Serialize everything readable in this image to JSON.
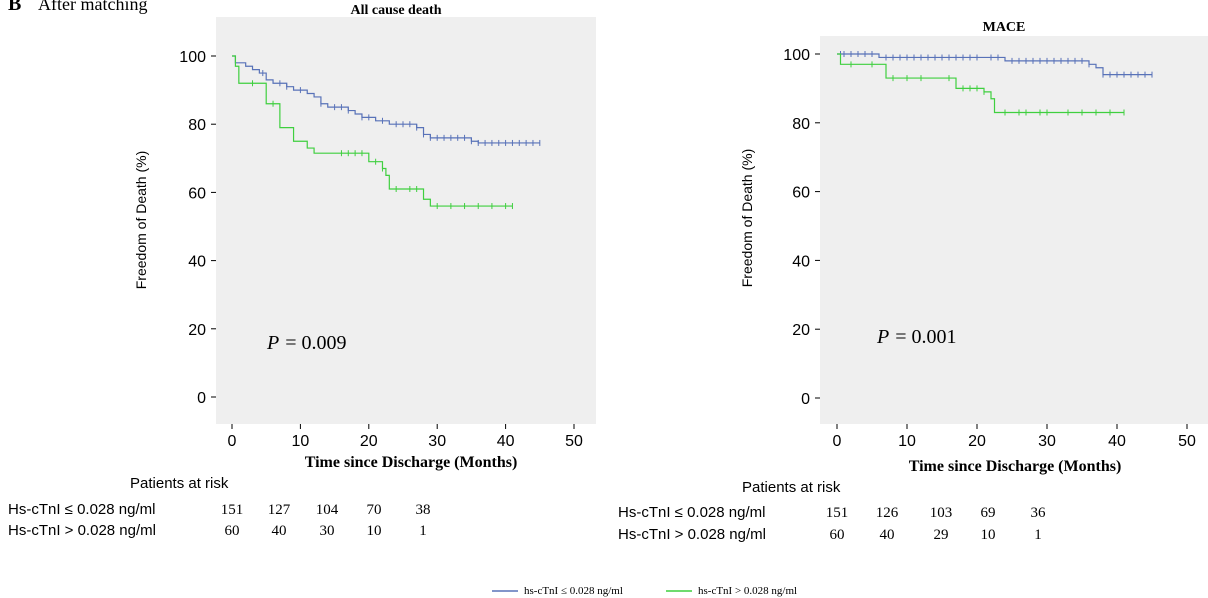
{
  "figure": {
    "panel_label": "B",
    "panel_subtitle": "After matching",
    "legend": [
      {
        "label": "hs-cTnI ≤ 0.028 ng/ml",
        "color": "#5872b8"
      },
      {
        "label": "hs-cTnI > 0.028 ng/ml",
        "color": "#3fcf3f"
      }
    ]
  },
  "panels": [
    {
      "risk_title": "Patients at risk",
      "risk_rows": [
        {
          "label": "Hs-cTnI ≤ 0.028 ng/ml",
          "values": [
            "151",
            "127",
            "104",
            "70",
            "38"
          ]
        },
        {
          "label": "Hs-cTnI > 0.028 ng/ml",
          "values": [
            "60",
            "40",
            "30",
            "10",
            "1"
          ]
        }
      ],
      "p_label": "P",
      "p_value": "= 0.009"
    },
    {
      "risk_title": "Patients at risk",
      "risk_rows": [
        {
          "label": "Hs-cTnI ≤ 0.028 ng/ml",
          "values": [
            "151",
            "126",
            "103",
            "69",
            "36"
          ]
        },
        {
          "label": "Hs-cTnI > 0.028 ng/ml",
          "values": [
            "60",
            "40",
            "29",
            "10",
            "1"
          ]
        }
      ],
      "p_label": "P",
      "p_value": "= 0.001"
    }
  ],
  "chart_data": [
    {
      "type": "line",
      "subtype": "kaplan-meier step",
      "title": "All cause death",
      "xlabel": "Time since Discharge (Months)",
      "ylabel": "Freedom of Death (%)",
      "xlim": [
        -2,
        53
      ],
      "ylim": [
        -5,
        105
      ],
      "xticks": [
        0,
        10,
        20,
        30,
        40,
        50
      ],
      "yticks": [
        0,
        20,
        40,
        60,
        80,
        100
      ],
      "grid": false,
      "background": "#efefef",
      "series": [
        {
          "color": "#5872b8",
          "steps": [
            [
              0,
              100
            ],
            [
              0.5,
              98
            ],
            [
              2,
              97
            ],
            [
              3,
              96
            ],
            [
              4,
              95
            ],
            [
              5,
              93
            ],
            [
              6,
              92
            ],
            [
              8,
              91
            ],
            [
              9,
              90
            ],
            [
              11,
              89
            ],
            [
              12,
              88
            ],
            [
              13,
              86
            ],
            [
              14,
              85
            ],
            [
              17,
              84
            ],
            [
              18,
              83
            ],
            [
              19,
              82
            ],
            [
              21,
              81
            ],
            [
              23,
              80
            ],
            [
              27,
              79
            ],
            [
              28,
              77
            ],
            [
              29,
              76
            ],
            [
              35,
              75
            ],
            [
              36,
              74.5
            ]
          ],
          "end_x": 45,
          "censor_x": [
            4.5,
            7,
            8,
            10,
            13,
            15,
            16,
            17,
            19,
            20,
            22,
            24,
            25,
            26,
            27,
            28,
            29,
            30,
            31,
            32,
            33,
            34,
            35,
            36,
            37,
            38,
            39,
            40,
            41,
            42,
            43,
            44,
            45
          ]
        },
        {
          "color": "#3fcf3f",
          "steps": [
            [
              0,
              100
            ],
            [
              0.5,
              97
            ],
            [
              1,
              92
            ],
            [
              5,
              86
            ],
            [
              7,
              79
            ],
            [
              9,
              75
            ],
            [
              11,
              73
            ],
            [
              12,
              71.5
            ],
            [
              20,
              69
            ],
            [
              22,
              67
            ],
            [
              22.5,
              65
            ],
            [
              23,
              61
            ],
            [
              28,
              58
            ],
            [
              29,
              56
            ]
          ],
          "end_x": 41,
          "censor_x": [
            3,
            6,
            16,
            17,
            18,
            19,
            21,
            22,
            24,
            26,
            27,
            30,
            32,
            34,
            36,
            38,
            40,
            41
          ]
        }
      ]
    },
    {
      "type": "line",
      "subtype": "kaplan-meier step",
      "title": "MACE",
      "xlabel": "Time since Discharge (Months)",
      "ylabel": "Freedom of Death (%)",
      "xlim": [
        -2,
        53
      ],
      "ylim": [
        -5,
        105
      ],
      "xticks": [
        0,
        10,
        20,
        30,
        40,
        50
      ],
      "yticks": [
        0,
        20,
        40,
        60,
        80,
        100
      ],
      "grid": false,
      "background": "#efefef",
      "series": [
        {
          "color": "#5872b8",
          "steps": [
            [
              0,
              100
            ],
            [
              6,
              99
            ],
            [
              24,
              98
            ],
            [
              36,
              97
            ],
            [
              37,
              96
            ],
            [
              38,
              94
            ]
          ],
          "end_x": 45,
          "censor_x": [
            0.5,
            1,
            2,
            3,
            4,
            5,
            7,
            8,
            9,
            10,
            11,
            12,
            13,
            14,
            15,
            16,
            17,
            18,
            19,
            20,
            22,
            23,
            25,
            26,
            27,
            28,
            29,
            30,
            31,
            32,
            33,
            34,
            35,
            36,
            38,
            39,
            40,
            41,
            42,
            43,
            44,
            45
          ]
        },
        {
          "color": "#3fcf3f",
          "steps": [
            [
              0,
              100
            ],
            [
              0.5,
              97
            ],
            [
              7,
              93
            ],
            [
              17,
              90
            ],
            [
              21,
              89
            ],
            [
              22,
              87
            ],
            [
              22.5,
              83
            ]
          ],
          "end_x": 41,
          "censor_x": [
            2,
            5,
            8,
            10,
            12,
            16,
            18,
            19,
            20,
            21,
            24,
            26,
            27,
            29,
            30,
            33,
            35,
            37,
            39,
            41
          ]
        }
      ]
    }
  ]
}
